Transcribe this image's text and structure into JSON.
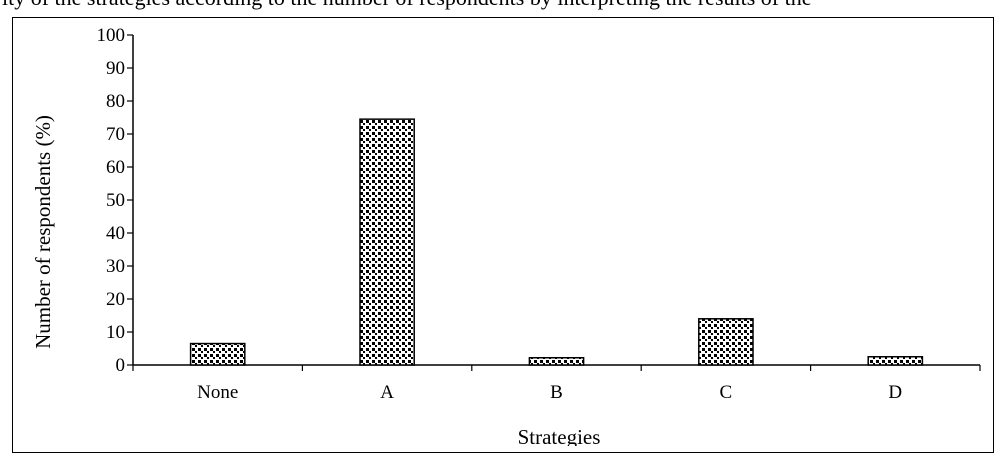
{
  "caption": "ity of the strategies according to the number of respondents by interpreting the results of the",
  "chart_data": {
    "type": "bar",
    "categories": [
      "None",
      "A",
      "B",
      "C",
      "D"
    ],
    "values": [
      6.5,
      74.5,
      2.2,
      14.0,
      2.5
    ],
    "xlabel": "Strategies",
    "ylabel": "Number of respondents (%)",
    "ylim": [
      0,
      100
    ],
    "yticks": [
      "0",
      "10",
      "20",
      "30",
      "40",
      "50",
      "60",
      "70",
      "80",
      "90",
      "100"
    ],
    "grid": false,
    "legend": "none",
    "bar_fill": "dotted pattern",
    "colors": {
      "bar_border": "#000000",
      "bar_dots": "#000000",
      "background": "#ffffff"
    }
  }
}
